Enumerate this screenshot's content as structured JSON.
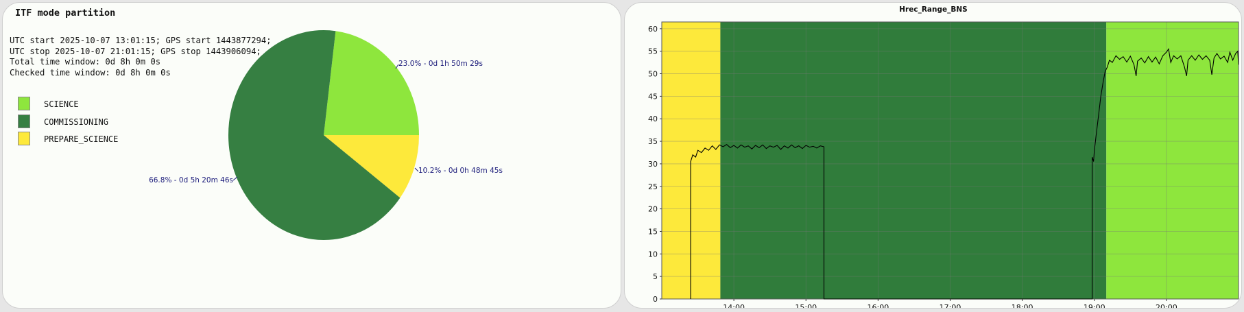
{
  "left": {
    "title": "ITF mode partition",
    "info_lines": [
      "UTC start 2025-10-07 13:01:15; GPS start 1443877294;",
      "UTC stop 2025-10-07 21:01:15; GPS stop 1443906094;",
      "Total time window: 0d 8h 0m 0s",
      "Checked time window: 0d 8h 0m 0s"
    ]
  },
  "chart_data": [
    {
      "type": "pie",
      "title": "ITF mode partition",
      "legend_position": "left",
      "slices": [
        {
          "name": "SCIENCE",
          "value": 23.0,
          "label": "23.0% - 0d 1h 50m 29s",
          "color": "#8ee63d"
        },
        {
          "name": "PREPARE_SCIENCE",
          "value": 10.2,
          "label": "10.2% - 0d 0h 48m 45s",
          "color": "#fde93b"
        },
        {
          "name": "COMMISSIONING",
          "value": 66.8,
          "label": "66.8% - 0d 5h 20m 46s",
          "color": "#367f42"
        }
      ],
      "legend": [
        "SCIENCE",
        "COMMISSIONING",
        "PREPARE_SCIENCE"
      ]
    },
    {
      "type": "line",
      "title": "Hrec_Range_BNS",
      "xlabel": "",
      "ylabel": "",
      "x_unit": "hours UTC",
      "xlim": [
        13.0,
        21.0
      ],
      "ylim": [
        0,
        61.5
      ],
      "xticks": [
        {
          "v": 14,
          "label": "14:00"
        },
        {
          "v": 15,
          "label": "15:00"
        },
        {
          "v": 16,
          "label": "16:00"
        },
        {
          "v": 17,
          "label": "17:00"
        },
        {
          "v": 18,
          "label": "18:00"
        },
        {
          "v": 19,
          "label": "19:00"
        },
        {
          "v": 20,
          "label": "20:00"
        }
      ],
      "yticks": [
        0,
        5,
        10,
        15,
        20,
        25,
        30,
        35,
        40,
        45,
        50,
        55,
        60
      ],
      "grid": true,
      "background_bands": [
        {
          "mode": "PREPARE_SCIENCE",
          "from": 13.0,
          "to": 13.8125,
          "color": "#fde93b"
        },
        {
          "mode": "COMMISSIONING",
          "from": 13.8125,
          "to": 19.1667,
          "color": "#307c3b"
        },
        {
          "mode": "SCIENCE",
          "from": 19.1667,
          "to": 21.0,
          "color": "#8ee63d"
        }
      ],
      "series": [
        {
          "color": "#000000",
          "points": [
            [
              13.4,
              0
            ],
            [
              13.4,
              30.5
            ],
            [
              13.43,
              32.0
            ],
            [
              13.47,
              31.5
            ],
            [
              13.5,
              33.0
            ],
            [
              13.55,
              32.5
            ],
            [
              13.6,
              33.5
            ],
            [
              13.65,
              33.0
            ],
            [
              13.7,
              34.0
            ],
            [
              13.75,
              33.2
            ],
            [
              13.8,
              34.2
            ],
            [
              13.85,
              33.8
            ],
            [
              13.9,
              34.3
            ],
            [
              13.95,
              33.6
            ],
            [
              14.0,
              34.1
            ],
            [
              14.05,
              33.5
            ],
            [
              14.1,
              34.2
            ],
            [
              14.15,
              33.7
            ],
            [
              14.2,
              34.0
            ],
            [
              14.25,
              33.3
            ],
            [
              14.3,
              34.1
            ],
            [
              14.35,
              33.6
            ],
            [
              14.4,
              34.2
            ],
            [
              14.45,
              33.4
            ],
            [
              14.5,
              34.0
            ],
            [
              14.55,
              33.7
            ],
            [
              14.6,
              34.1
            ],
            [
              14.65,
              33.2
            ],
            [
              14.7,
              34.0
            ],
            [
              14.75,
              33.5
            ],
            [
              14.8,
              34.2
            ],
            [
              14.85,
              33.6
            ],
            [
              14.9,
              34.0
            ],
            [
              14.95,
              33.4
            ],
            [
              15.0,
              34.1
            ],
            [
              15.05,
              33.7
            ],
            [
              15.1,
              33.9
            ],
            [
              15.15,
              33.5
            ],
            [
              15.2,
              34.0
            ],
            [
              15.25,
              33.8
            ],
            [
              15.25,
              0
            ],
            [
              18.97,
              0
            ],
            [
              18.97,
              31.5
            ],
            [
              18.99,
              30.5
            ],
            [
              19.0,
              33.0
            ],
            [
              19.03,
              37.0
            ],
            [
              19.06,
              41.0
            ],
            [
              19.09,
              45.0
            ],
            [
              19.12,
              48.0
            ],
            [
              19.15,
              50.5
            ],
            [
              19.18,
              51.5
            ],
            [
              19.21,
              53.0
            ],
            [
              19.25,
              52.5
            ],
            [
              19.3,
              54.0
            ],
            [
              19.35,
              53.2
            ],
            [
              19.4,
              53.8
            ],
            [
              19.45,
              52.6
            ],
            [
              19.5,
              53.9
            ],
            [
              19.55,
              52.0
            ],
            [
              19.58,
              49.5
            ],
            [
              19.6,
              52.8
            ],
            [
              19.65,
              53.5
            ],
            [
              19.7,
              52.4
            ],
            [
              19.75,
              53.8
            ],
            [
              19.8,
              52.6
            ],
            [
              19.85,
              53.7
            ],
            [
              19.9,
              52.2
            ],
            [
              19.95,
              54.0
            ],
            [
              20.0,
              54.8
            ],
            [
              20.03,
              55.5
            ],
            [
              20.06,
              52.5
            ],
            [
              20.1,
              54.0
            ],
            [
              20.15,
              53.3
            ],
            [
              20.2,
              54.0
            ],
            [
              20.25,
              51.5
            ],
            [
              20.28,
              49.5
            ],
            [
              20.3,
              53.0
            ],
            [
              20.35,
              54.0
            ],
            [
              20.4,
              53.0
            ],
            [
              20.45,
              54.2
            ],
            [
              20.5,
              53.2
            ],
            [
              20.55,
              54.0
            ],
            [
              20.6,
              53.0
            ],
            [
              20.63,
              49.8
            ],
            [
              20.66,
              53.5
            ],
            [
              20.7,
              54.5
            ],
            [
              20.75,
              53.3
            ],
            [
              20.8,
              53.9
            ],
            [
              20.85,
              52.5
            ],
            [
              20.88,
              54.8
            ],
            [
              20.92,
              53.0
            ],
            [
              20.96,
              54.5
            ],
            [
              20.99,
              55.0
            ],
            [
              21.0,
              52.0
            ]
          ]
        }
      ]
    }
  ]
}
